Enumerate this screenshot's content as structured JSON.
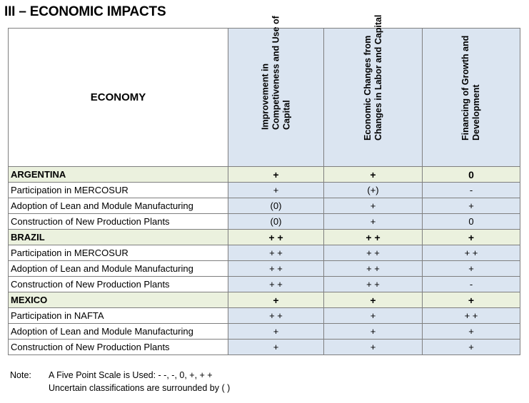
{
  "title": "III – ECONOMIC IMPACTS",
  "table": {
    "corner_header": "ECONOMY",
    "columns": [
      "Improvement in Competiveness and Use of Capital",
      "Economic Changes from Changes in Labor and Capital",
      "Financing of Growth and Development"
    ],
    "rows": [
      {
        "label": "ARGENTINA",
        "country": true,
        "values": [
          "+",
          "+",
          "0"
        ]
      },
      {
        "label": "Participation in MERCOSUR",
        "country": false,
        "values": [
          "+",
          "(+)",
          "-"
        ]
      },
      {
        "label": "Adoption of Lean and Module Manufacturing",
        "country": false,
        "values": [
          "(0)",
          "+",
          "+"
        ]
      },
      {
        "label": "Construction of New Production Plants",
        "country": false,
        "values": [
          "(0)",
          "+",
          "0"
        ]
      },
      {
        "label": "BRAZIL",
        "country": true,
        "values": [
          "+ +",
          "+ +",
          "+"
        ]
      },
      {
        "label": "Participation in MERCOSUR",
        "country": false,
        "values": [
          "+ +",
          "+ +",
          "+ +"
        ]
      },
      {
        "label": "Adoption of Lean and Module Manufacturing",
        "country": false,
        "values": [
          "+ +",
          "+ +",
          "+"
        ]
      },
      {
        "label": "Construction of New Production Plants",
        "country": false,
        "values": [
          "+ +",
          "+ +",
          "-"
        ]
      },
      {
        "label": "MEXICO",
        "country": true,
        "values": [
          "+",
          "+",
          "+"
        ]
      },
      {
        "label": "Participation in NAFTA",
        "country": false,
        "values": [
          "+ +",
          "+",
          "+ +"
        ]
      },
      {
        "label": "Adoption of Lean and Module Manufacturing",
        "country": false,
        "values": [
          "+",
          "+",
          "+"
        ]
      },
      {
        "label": "Construction of New Production Plants",
        "country": false,
        "values": [
          "+",
          "+",
          "+"
        ]
      }
    ]
  },
  "note": {
    "label": "Note:",
    "line1": "A Five Point Scale is Used:  - -, -, 0, +, + +",
    "line2": "Uncertain classifications are surrounded by ( )"
  },
  "colors": {
    "column_fill": "#dbe5f1",
    "country_row_fill": "#ebf1de",
    "border": "#7f7f7f"
  }
}
